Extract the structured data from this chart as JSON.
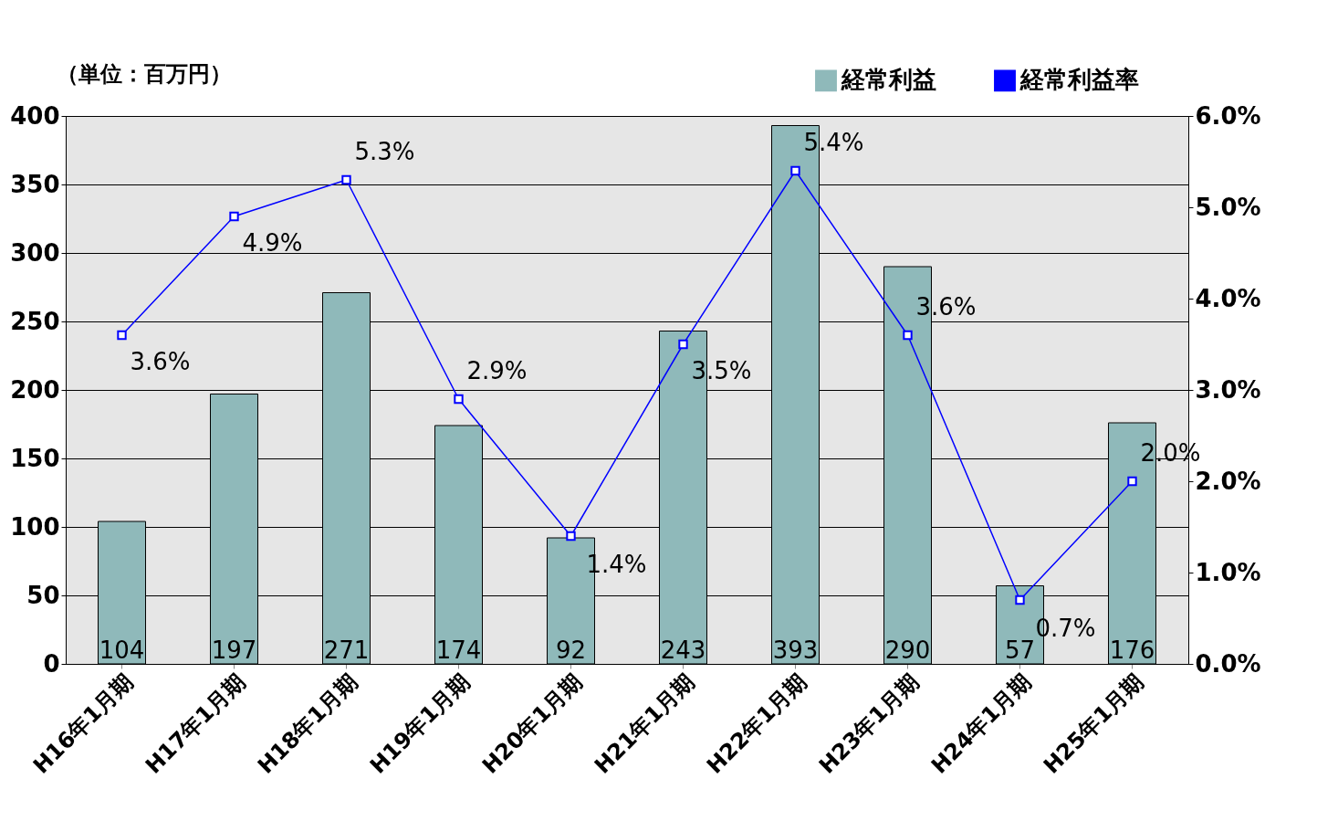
{
  "chart_data": {
    "type": "bar",
    "ylabel": "（単位：百万円）",
    "categories": [
      "H16年1月期",
      "H17年1月期",
      "H18年1月期",
      "H19年1月期",
      "H20年1月期",
      "H21年1月期",
      "H22年1月期",
      "H23年1月期",
      "H24年1月期",
      "H25年1月期"
    ],
    "series": [
      {
        "name": "経常利益",
        "color": "#8fb9ba",
        "values": [
          104,
          197,
          271,
          174,
          92,
          243,
          393,
          290,
          57,
          176
        ],
        "value_labels": [
          "104",
          "197",
          "271",
          "174",
          "92",
          "243",
          "393",
          "290",
          "57",
          "176"
        ]
      },
      {
        "name": "経常利益率",
        "type": "line",
        "axis": "y2",
        "color": "#0000ff",
        "marker": "square",
        "values": [
          3.6,
          4.9,
          5.3,
          2.9,
          1.4,
          3.5,
          5.4,
          3.6,
          0.7,
          2.0
        ],
        "value_labels": [
          "3.6%",
          "4.9%",
          "5.3%",
          "2.9%",
          "1.4%",
          "3.5%",
          "5.4%",
          "3.6%",
          "0.7%",
          "2.0%"
        ]
      }
    ],
    "ylim": [
      0,
      400
    ],
    "yticks": [
      0,
      50,
      100,
      150,
      200,
      250,
      300,
      350,
      400
    ],
    "y2lim": [
      0,
      6
    ],
    "y2ticks": [
      {
        "value": 0,
        "label": "0.0%"
      },
      {
        "value": 1,
        "label": "1.0%"
      },
      {
        "value": 2,
        "label": "2.0%"
      },
      {
        "value": 3,
        "label": "3.0%"
      },
      {
        "value": 4,
        "label": "4.0%"
      },
      {
        "value": 5,
        "label": "5.0%"
      },
      {
        "value": 6,
        "label": "6.0%"
      }
    ],
    "grid": "y",
    "legend": "top right"
  }
}
